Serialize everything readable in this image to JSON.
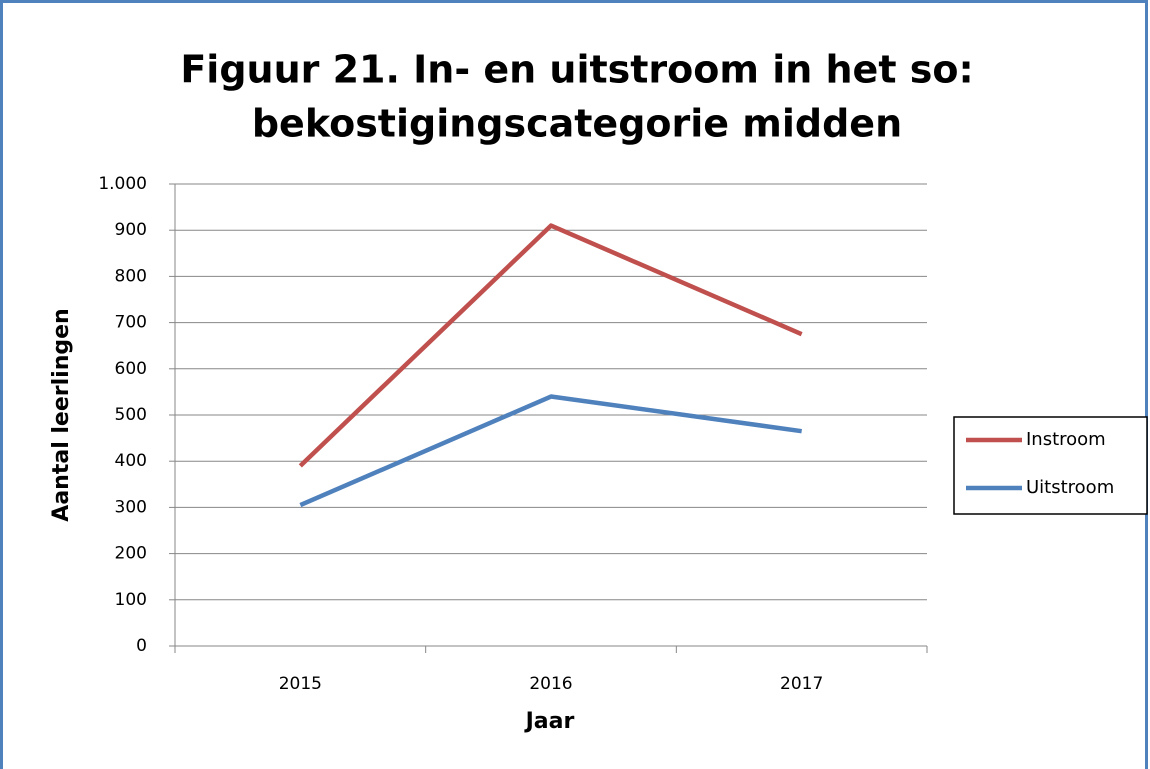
{
  "chart_data": {
    "type": "line",
    "title": [
      "Figuur 21. In- en uitstroom in het so:",
      "bekostigingscategorie midden"
    ],
    "x_label": "Jaar",
    "y_label": "Aantal leerlingen",
    "categories": [
      "2015",
      "2016",
      "2017"
    ],
    "series": [
      {
        "name": "Instroom",
        "color": "#c0504d",
        "values": [
          390,
          910,
          675
        ]
      },
      {
        "name": "Uitstroom",
        "color": "#4f81bd",
        "values": [
          305,
          540,
          465
        ]
      }
    ],
    "ylim": [
      0,
      1000
    ],
    "yticks": [
      0,
      100,
      200,
      300,
      400,
      500,
      600,
      700,
      800,
      900,
      {
        "value": 1000,
        "label": "1.000"
      }
    ],
    "grid": true,
    "legend": "right"
  }
}
